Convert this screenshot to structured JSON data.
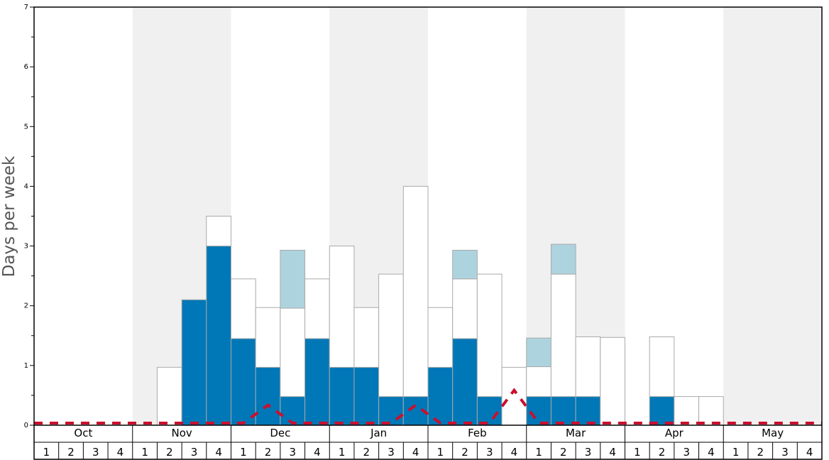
{
  "chart_data": {
    "type": "bar",
    "ylabel": "Days per week",
    "ylim": [
      0,
      7
    ],
    "yticks": [
      "0",
      "1",
      "2",
      "3",
      "4",
      "5",
      "6",
      "7"
    ],
    "months": [
      "Oct",
      "Nov",
      "Dec",
      "Jan",
      "Feb",
      "Mar",
      "Apr",
      "May"
    ],
    "weeks": [
      "1",
      "2",
      "3",
      "4"
    ],
    "shaded_months": [
      "Nov",
      "Jan",
      "Mar",
      "May"
    ],
    "colors": {
      "dark": "#0077b6",
      "light": "#add3de",
      "white": "#ffffff",
      "dashed_line": "#c8102e",
      "shade": "#f0f0f0"
    },
    "series": [
      {
        "key": "dark",
        "values": [
          0,
          0,
          0,
          0,
          0,
          0,
          2.1,
          3.0,
          1.45,
          0.97,
          0.48,
          1.45,
          0.97,
          0.97,
          0.48,
          0.48,
          0.97,
          1.45,
          0.48,
          0,
          0.48,
          0.48,
          0.48,
          0,
          0,
          0.48,
          0,
          0,
          0,
          0,
          0,
          0
        ]
      },
      {
        "key": "white",
        "values": [
          0,
          0,
          0,
          0,
          0,
          0.97,
          0,
          0.5,
          1.0,
          1.0,
          1.48,
          1.0,
          2.03,
          1.0,
          2.05,
          3.52,
          1.0,
          1.0,
          2.05,
          0.97,
          0.5,
          2.05,
          1.0,
          1.47,
          0,
          1.0,
          0.48,
          0.48,
          0,
          0,
          0,
          0
        ]
      },
      {
        "key": "light",
        "values": [
          0,
          0,
          0,
          0,
          0,
          0,
          0,
          0,
          0,
          0,
          0.97,
          0,
          0,
          0,
          0,
          0,
          0,
          0.48,
          0,
          0,
          0.48,
          0.5,
          0,
          0,
          0,
          0,
          0,
          0,
          0,
          0,
          0,
          0
        ]
      }
    ],
    "dashed_line": [
      0,
      0,
      0,
      0,
      0,
      0,
      0,
      0,
      0,
      0.3,
      0,
      0,
      0,
      0,
      0,
      0.3,
      0,
      0,
      0,
      0.55,
      0,
      0,
      0,
      0,
      0,
      0,
      0,
      0,
      0,
      0,
      0,
      0
    ]
  }
}
